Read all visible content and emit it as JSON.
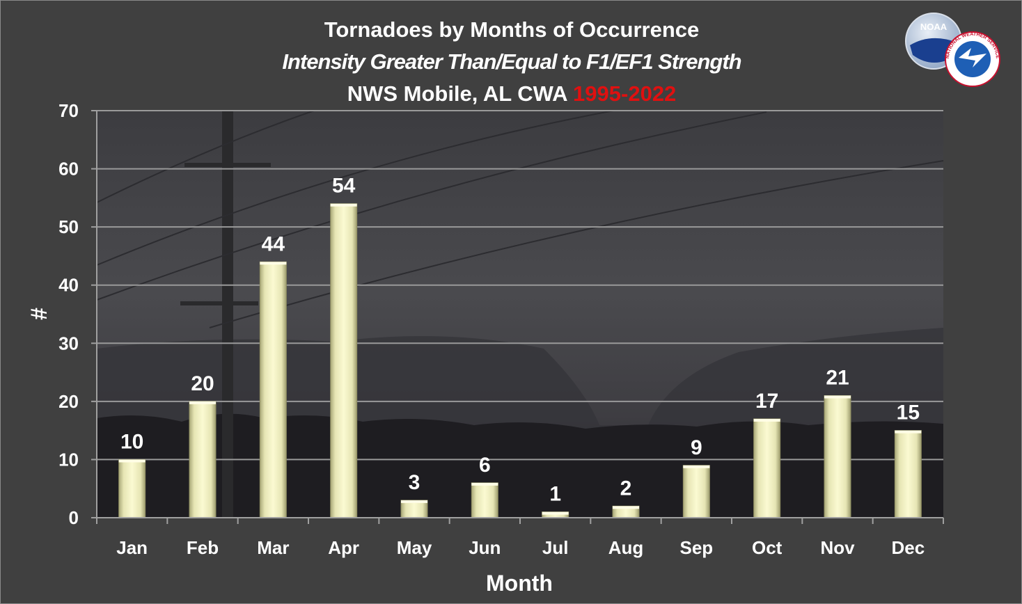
{
  "header": {
    "title": "Tornadoes by Months of Occurrence",
    "subtitle": "Intensity Greater Than/Equal to F1/EF1 Strength",
    "region": "NWS Mobile, AL CWA",
    "period": "1995-2022"
  },
  "logos": {
    "noaa_text": "NOAA",
    "nws_text": "NATIONAL WEATHER SERVICE"
  },
  "colors": {
    "bar_fill": "#f4f3c4",
    "bar_shade": "#b9b88a",
    "period_highlight": "#e01010",
    "gridline": "#9a9a9a",
    "background": "#404040"
  },
  "chart_data": {
    "type": "bar",
    "categories": [
      "Jan",
      "Feb",
      "Mar",
      "Apr",
      "May",
      "Jun",
      "Jul",
      "Aug",
      "Sep",
      "Oct",
      "Nov",
      "Dec"
    ],
    "values": [
      10,
      20,
      44,
      54,
      3,
      6,
      1,
      2,
      9,
      17,
      21,
      15
    ],
    "xlabel": "Month",
    "ylabel": "#",
    "ylim": [
      0,
      70
    ],
    "yticks": [
      0,
      10,
      20,
      30,
      40,
      50,
      60,
      70
    ],
    "grid": true,
    "data_labels": true,
    "legend": "none"
  }
}
